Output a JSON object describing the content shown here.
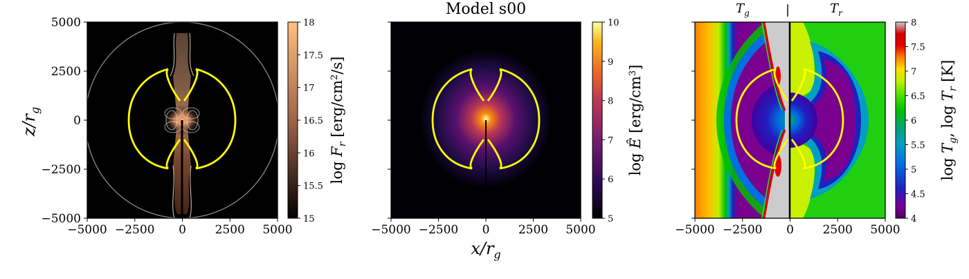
{
  "figure_title": "Model s00",
  "colors": {
    "contour": "#ffff00",
    "frame": "#000000"
  },
  "chart_data": [
    {
      "type": "heatmap",
      "quantity": "log F_r",
      "colorbar_label": "log F_r [erg/cm^2/s]",
      "colormap": "copper",
      "clim": [
        15,
        18
      ],
      "colorbar_ticks": [
        "15",
        "15.5",
        "16",
        "16.5",
        "17",
        "17.5",
        "18"
      ],
      "xlim": [
        -5000,
        5000
      ],
      "ylim": [
        -5000,
        5000
      ],
      "xticks": [
        "−5000",
        "−2500",
        "0",
        "2500",
        "5000"
      ],
      "yticks": [
        "5000",
        "2500",
        "0",
        "−2500",
        "−5000"
      ],
      "ylabel": "z/r_g",
      "yellow_contour": "photosphere"
    },
    {
      "type": "heatmap",
      "quantity": "log Ê",
      "colorbar_label": "log Ê [erg/cm^3]",
      "colormap": "inferno",
      "clim": [
        5,
        10
      ],
      "colorbar_ticks": [
        "5",
        "6",
        "7",
        "8",
        "9",
        "10"
      ],
      "xlim": [
        -5000,
        5000
      ],
      "ylim": [
        -5000,
        5000
      ],
      "xticks": [
        "−5000",
        "−2500",
        "0",
        "2500",
        "5000"
      ],
      "xlabel": "x/r_g",
      "yellow_contour": "photosphere"
    },
    {
      "type": "heatmap",
      "quantity": "log T_g (left half), log T_r (right half)",
      "colorbar_label": "log T_g, log T_r [K]",
      "colormap": "nipy_spectral",
      "clim": [
        4,
        8
      ],
      "colorbar_ticks": [
        "4",
        "4.5",
        "5",
        "5.5",
        "6",
        "6.5",
        "7",
        "7.5",
        "8"
      ],
      "xlim": [
        -5000,
        5000
      ],
      "ylim": [
        -5000,
        5000
      ],
      "xticks": [
        "−5000",
        "−2500",
        "0",
        "2500",
        "5000"
      ],
      "half_labels": [
        "T_g",
        "|",
        "T_r"
      ],
      "yellow_contour": "photosphere"
    }
  ]
}
